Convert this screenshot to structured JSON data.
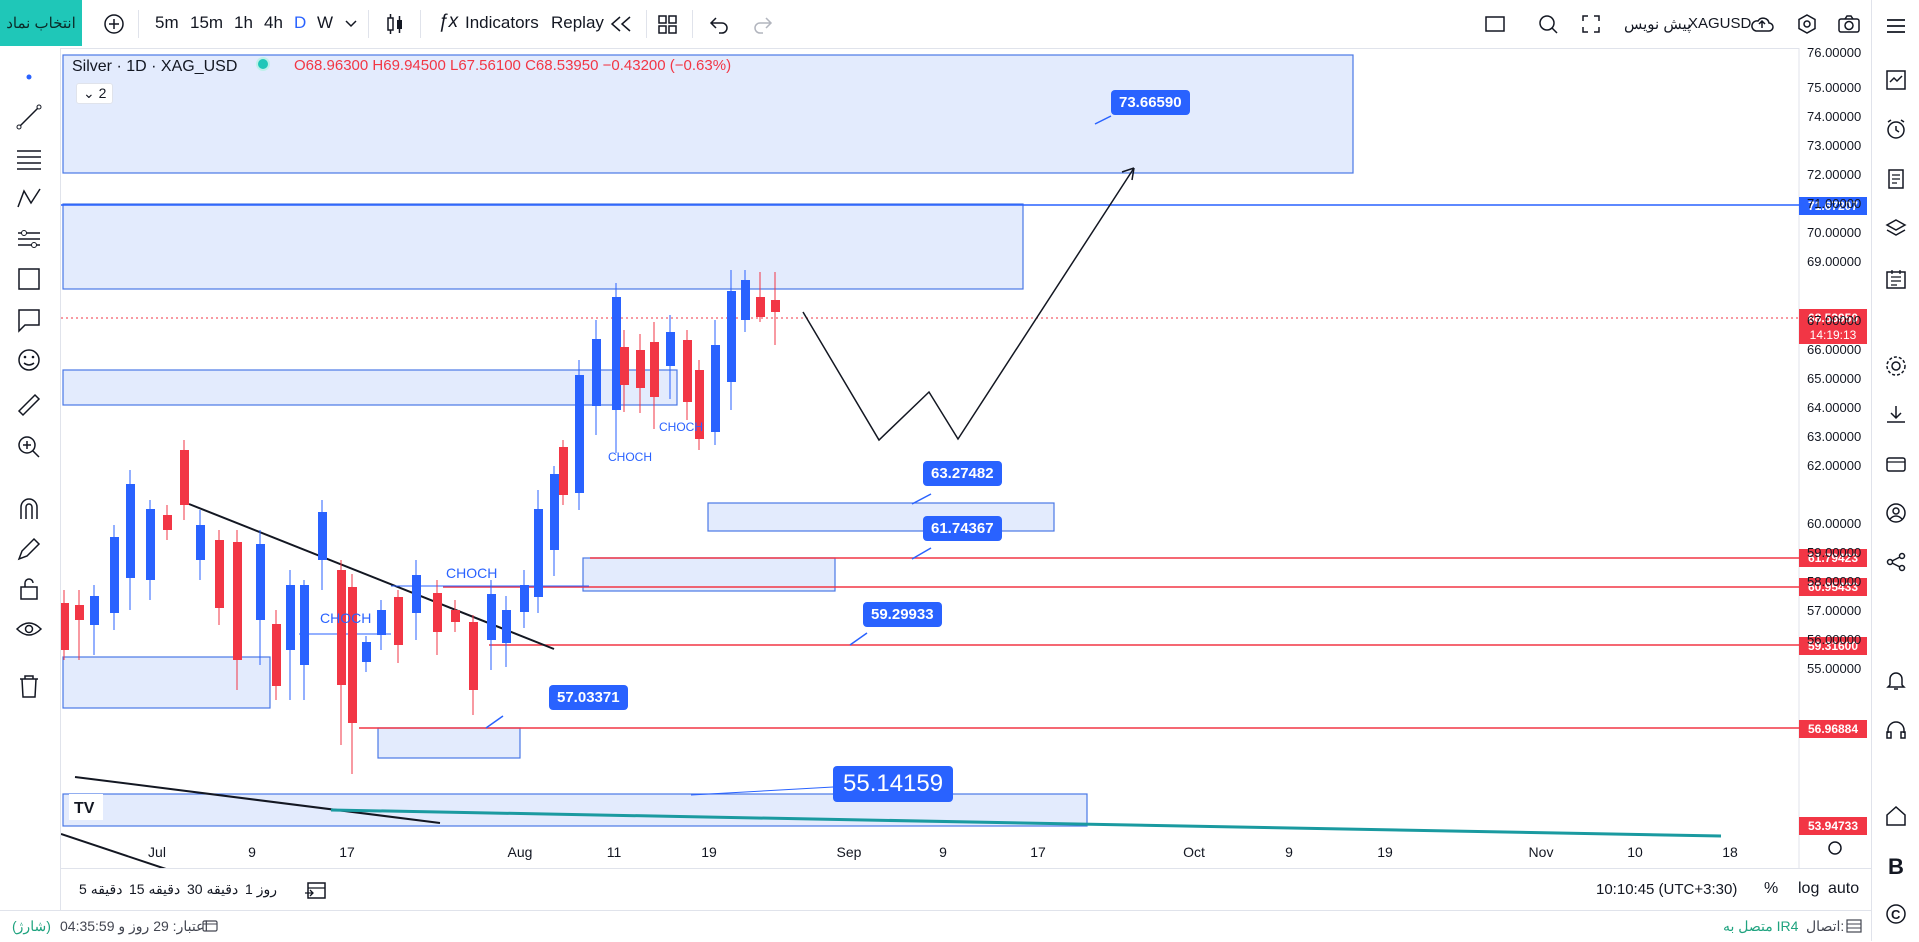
{
  "toolbar": {
    "symbol_btn": "انتخاب نماد",
    "intervals": [
      "5m",
      "15m",
      "1h",
      "4h",
      "D",
      "W"
    ],
    "active_interval": "D",
    "indicators": "Indicators",
    "replay": "Replay",
    "symbol_name": "XAGUSD",
    "broker": "پیش نویس"
  },
  "legend": {
    "title": "Silver · 1D · XAG_USD",
    "open": "O68.96300",
    "high": "H69.94500",
    "low": "L67.56100",
    "close": "C68.53950",
    "change": "−0.43200 (−0.63%)",
    "count": "2"
  },
  "annotations": [
    {
      "label": "73.66590"
    },
    {
      "label": "63.27482"
    },
    {
      "label": "61.74367"
    },
    {
      "label": "59.29933"
    },
    {
      "label": "57.03371"
    },
    {
      "label": "55.14159"
    }
  ],
  "choch_labels": [
    "CHOCH",
    "CHOCH",
    "CHOCH",
    "CHOCH"
  ],
  "price_tags": [
    {
      "value": "71.67207",
      "color": "#2962ff"
    },
    {
      "value": "68.53950",
      "color": "#f23645"
    },
    {
      "value": "14:19:13",
      "color": "#f23645"
    },
    {
      "value": "61.79423",
      "color": "#f23645"
    },
    {
      "value": "60.95433",
      "color": "#f23645"
    },
    {
      "value": "59.31600",
      "color": "#f23645"
    },
    {
      "value": "56.96884",
      "color": "#f23645"
    },
    {
      "value": "53.94733",
      "color": "#f23645"
    }
  ],
  "y_axis": [
    "76.00000",
    "75.00000",
    "74.00000",
    "73.00000",
    "72.00000",
    "71.00000",
    "70.00000",
    "69.00000",
    "67.00000",
    "66.00000",
    "65.00000",
    "64.00000",
    "63.00000",
    "62.00000",
    "60.00000",
    "59.00000",
    "58.00000",
    "57.00000",
    "56.00000",
    "55.00000"
  ],
  "x_axis": [
    "Jul",
    "9",
    "17",
    "Aug",
    "11",
    "19",
    "Sep",
    "9",
    "17",
    "Oct",
    "9",
    "19",
    "Nov",
    "10",
    "18"
  ],
  "bottom": {
    "ranges": [
      "5 دقیقه",
      "15 دقیقه",
      "30 دقیقه",
      "1 روز"
    ],
    "clock": "10:10:45 (UTC+3:30)",
    "percent": "%",
    "log": "log",
    "auto": "auto"
  },
  "status": {
    "left": "اعتبار: 29 روز و 04:35:59",
    "charge": "(شارژ)",
    "right_label": "اتصال:",
    "right_value": "متصل به IR4"
  }
}
